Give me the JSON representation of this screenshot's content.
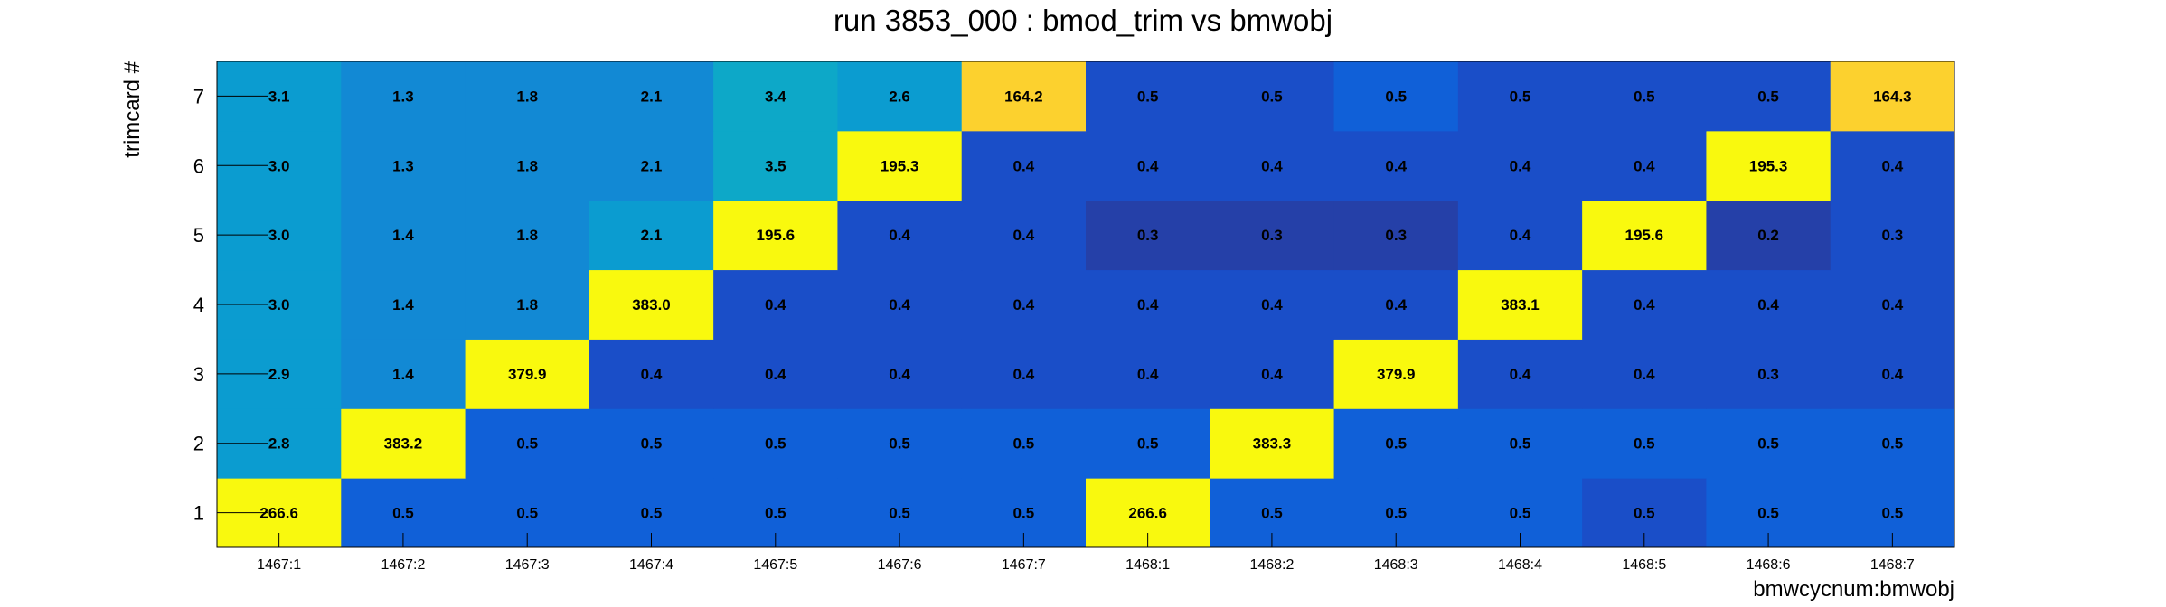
{
  "chart_data": {
    "type": "heatmap",
    "title": "run 3853_000 : bmod_trim vs bmwobj",
    "xlabel": "bmwcycnum:bmwobj",
    "ylabel": "trimcard #",
    "x_categories": [
      "1467:1",
      "1467:2",
      "1467:3",
      "1467:4",
      "1467:5",
      "1467:6",
      "1467:7",
      "1468:1",
      "1468:2",
      "1468:3",
      "1468:4",
      "1468:5",
      "1468:6",
      "1468:7"
    ],
    "y_categories": [
      "1",
      "2",
      "3",
      "4",
      "5",
      "6",
      "7"
    ],
    "values": [
      [
        "266.6",
        "0.5",
        "0.5",
        "0.5",
        "0.5",
        "0.5",
        "0.5",
        "266.6",
        "0.5",
        "0.5",
        "0.5",
        "0.5",
        "0.5",
        "0.5"
      ],
      [
        "2.8",
        "383.2",
        "0.5",
        "0.5",
        "0.5",
        "0.5",
        "0.5",
        "0.5",
        "383.3",
        "0.5",
        "0.5",
        "0.5",
        "0.5",
        "0.5"
      ],
      [
        "2.9",
        "1.4",
        "379.9",
        "0.4",
        "0.4",
        "0.4",
        "0.4",
        "0.4",
        "0.4",
        "379.9",
        "0.4",
        "0.4",
        "0.3",
        "0.4"
      ],
      [
        "3.0",
        "1.4",
        "1.8",
        "383.0",
        "0.4",
        "0.4",
        "0.4",
        "0.4",
        "0.4",
        "0.4",
        "383.1",
        "0.4",
        "0.4",
        "0.4"
      ],
      [
        "3.0",
        "1.4",
        "1.8",
        "2.1",
        "195.6",
        "0.4",
        "0.4",
        "0.3",
        "0.3",
        "0.3",
        "0.4",
        "195.6",
        "0.2",
        "0.3"
      ],
      [
        "3.0",
        "1.3",
        "1.8",
        "2.1",
        "3.5",
        "195.3",
        "0.4",
        "0.4",
        "0.4",
        "0.4",
        "0.4",
        "0.4",
        "195.3",
        "0.4"
      ],
      [
        "3.1",
        "1.3",
        "1.8",
        "2.1",
        "3.4",
        "2.6",
        "164.2",
        "0.5",
        "0.5",
        "0.5",
        "0.5",
        "0.5",
        "0.5",
        "164.3"
      ]
    ],
    "colors": [
      [
        "#f9f90e",
        "#1060d8",
        "#1060d8",
        "#1060d8",
        "#1060d8",
        "#1060d8",
        "#1060d8",
        "#f9f90e",
        "#1060d8",
        "#1060d8",
        "#1060d8",
        "#1a4ec8",
        "#1060d8",
        "#1060d8"
      ],
      [
        "#0b9cd0",
        "#f9f90e",
        "#1060d8",
        "#1060d8",
        "#1060d8",
        "#1060d8",
        "#1060d8",
        "#1060d8",
        "#f9f90e",
        "#1060d8",
        "#1060d8",
        "#1060d8",
        "#1060d8",
        "#1060d8"
      ],
      [
        "#0b9cd0",
        "#1289d4",
        "#f9f90e",
        "#1a4ec8",
        "#1a4ec8",
        "#1a4ec8",
        "#1a4ec8",
        "#1a4ec8",
        "#1a4ec8",
        "#f9f90e",
        "#1a4ec8",
        "#1a4ec8",
        "#1a4ec8",
        "#1a4ec8"
      ],
      [
        "#0b9cd0",
        "#1289d4",
        "#1289d4",
        "#f9f90e",
        "#1a4ec8",
        "#1a4ec8",
        "#1a4ec8",
        "#1a4ec8",
        "#1a4ec8",
        "#1a4ec8",
        "#f9f90e",
        "#1a4ec8",
        "#1a4ec8",
        "#1a4ec8"
      ],
      [
        "#0b9cd0",
        "#1289d4",
        "#1289d4",
        "#0b9cd0",
        "#f9f90e",
        "#1a4ec8",
        "#1a4ec8",
        "#2540a8",
        "#2540a8",
        "#2540a8",
        "#1a4ec8",
        "#f9f90e",
        "#2540a8",
        "#1a4ec8"
      ],
      [
        "#0b9cd0",
        "#1289d4",
        "#1289d4",
        "#1289d4",
        "#0da8c8",
        "#f9f90e",
        "#1a4ec8",
        "#1a4ec8",
        "#1a4ec8",
        "#1a4ec8",
        "#1a4ec8",
        "#1a4ec8",
        "#f9f90e",
        "#1a4ec8"
      ],
      [
        "#0b9cd0",
        "#1289d4",
        "#1289d4",
        "#1289d4",
        "#0da8c8",
        "#0b9cd0",
        "#fcd12e",
        "#1a4ec8",
        "#1a4ec8",
        "#1060d8",
        "#1a4ec8",
        "#1a4ec8",
        "#1a4ec8",
        "#fcd12e"
      ]
    ],
    "grid": false,
    "legend": "none"
  }
}
